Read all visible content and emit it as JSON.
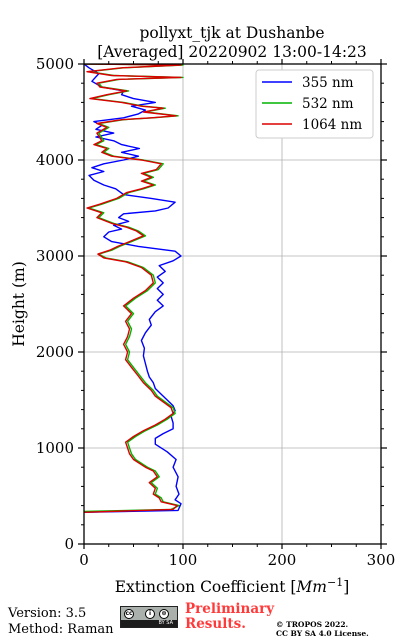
{
  "chart_data": {
    "type": "line",
    "title": "pollyxt_tjk at Dushanbe",
    "subtitle": "[Averaged] 20220902 13:00-14:23",
    "xlabel": "Extinction Coefficient [Mm⁻¹]",
    "ylabel": "Height (m)",
    "xlim": [
      0,
      300
    ],
    "ylim": [
      0,
      5000
    ],
    "xticks": [
      "0",
      "100",
      "200",
      "300"
    ],
    "yticks": [
      "0",
      "1000",
      "2000",
      "3000",
      "4000",
      "5000"
    ],
    "grid": true,
    "legend_position": "top-right",
    "series": [
      {
        "name": "355 nm",
        "color": "#0000ff",
        "points": [
          [
            0,
            330
          ],
          [
            95,
            350
          ],
          [
            98,
            420
          ],
          [
            92,
            460
          ],
          [
            96,
            520
          ],
          [
            93,
            600
          ],
          [
            95,
            700
          ],
          [
            90,
            800
          ],
          [
            93,
            880
          ],
          [
            84,
            960
          ],
          [
            72,
            1040
          ],
          [
            72,
            1100
          ],
          [
            80,
            1150
          ],
          [
            90,
            1200
          ],
          [
            90,
            1260
          ],
          [
            88,
            1330
          ],
          [
            92,
            1390
          ],
          [
            90,
            1440
          ],
          [
            84,
            1500
          ],
          [
            78,
            1560
          ],
          [
            72,
            1620
          ],
          [
            70,
            1680
          ],
          [
            66,
            1740
          ],
          [
            64,
            1800
          ],
          [
            62,
            1880
          ],
          [
            60,
            1960
          ],
          [
            61,
            2040
          ],
          [
            58,
            2120
          ],
          [
            62,
            2200
          ],
          [
            68,
            2280
          ],
          [
            66,
            2340
          ],
          [
            72,
            2420
          ],
          [
            80,
            2480
          ],
          [
            74,
            2540
          ],
          [
            80,
            2600
          ],
          [
            74,
            2660
          ],
          [
            80,
            2720
          ],
          [
            74,
            2780
          ],
          [
            82,
            2840
          ],
          [
            76,
            2900
          ],
          [
            90,
            2950
          ],
          [
            98,
            3000
          ],
          [
            92,
            3050
          ],
          [
            55,
            3100
          ],
          [
            28,
            3150
          ],
          [
            20,
            3200
          ],
          [
            25,
            3250
          ],
          [
            38,
            3280
          ],
          [
            30,
            3320
          ],
          [
            45,
            3360
          ],
          [
            35,
            3400
          ],
          [
            40,
            3440
          ],
          [
            72,
            3470
          ],
          [
            85,
            3500
          ],
          [
            92,
            3560
          ],
          [
            68,
            3600
          ],
          [
            40,
            3640
          ],
          [
            32,
            3700
          ],
          [
            20,
            3740
          ],
          [
            10,
            3790
          ],
          [
            5,
            3840
          ],
          [
            20,
            3880
          ],
          [
            8,
            3920
          ],
          [
            20,
            3960
          ],
          [
            40,
            4000
          ],
          [
            55,
            4040
          ],
          [
            38,
            4080
          ],
          [
            56,
            4120
          ],
          [
            38,
            4160
          ],
          [
            30,
            4200
          ],
          [
            12,
            4240
          ],
          [
            30,
            4280
          ],
          [
            12,
            4320
          ],
          [
            18,
            4360
          ],
          [
            10,
            4400
          ],
          [
            40,
            4440
          ],
          [
            55,
            4480
          ],
          [
            62,
            4520
          ],
          [
            48,
            4560
          ],
          [
            72,
            4600
          ],
          [
            50,
            4640
          ],
          [
            38,
            4680
          ],
          [
            40,
            4720
          ],
          [
            18,
            4760
          ],
          [
            8,
            4820
          ],
          [
            15,
            4900
          ],
          [
            5,
            4960
          ],
          [
            0,
            5000
          ]
        ]
      },
      {
        "name": "532 nm",
        "color": "#00b400",
        "points": [
          [
            0,
            340
          ],
          [
            88,
            360
          ],
          [
            96,
            400
          ],
          [
            80,
            440
          ],
          [
            78,
            480
          ],
          [
            72,
            520
          ],
          [
            74,
            580
          ],
          [
            68,
            640
          ],
          [
            76,
            700
          ],
          [
            72,
            760
          ],
          [
            64,
            800
          ],
          [
            52,
            880
          ],
          [
            48,
            940
          ],
          [
            46,
            1000
          ],
          [
            44,
            1060
          ],
          [
            52,
            1120
          ],
          [
            62,
            1180
          ],
          [
            74,
            1240
          ],
          [
            84,
            1300
          ],
          [
            92,
            1360
          ],
          [
            90,
            1420
          ],
          [
            82,
            1480
          ],
          [
            74,
            1540
          ],
          [
            70,
            1600
          ],
          [
            62,
            1680
          ],
          [
            56,
            1760
          ],
          [
            50,
            1840
          ],
          [
            44,
            1920
          ],
          [
            46,
            2000
          ],
          [
            42,
            2080
          ],
          [
            46,
            2160
          ],
          [
            48,
            2240
          ],
          [
            44,
            2320
          ],
          [
            50,
            2400
          ],
          [
            42,
            2480
          ],
          [
            52,
            2560
          ],
          [
            64,
            2640
          ],
          [
            72,
            2720
          ],
          [
            70,
            2800
          ],
          [
            60,
            2880
          ],
          [
            44,
            2940
          ],
          [
            22,
            2980
          ],
          [
            15,
            3020
          ],
          [
            28,
            3060
          ],
          [
            36,
            3100
          ],
          [
            48,
            3150
          ],
          [
            62,
            3210
          ],
          [
            55,
            3260
          ],
          [
            45,
            3300
          ],
          [
            30,
            3340
          ],
          [
            15,
            3400
          ],
          [
            20,
            3450
          ],
          [
            5,
            3500
          ],
          [
            18,
            3540
          ],
          [
            35,
            3600
          ],
          [
            45,
            3660
          ],
          [
            60,
            3700
          ],
          [
            72,
            3740
          ],
          [
            60,
            3780
          ],
          [
            70,
            3820
          ],
          [
            60,
            3860
          ],
          [
            75,
            3900
          ],
          [
            80,
            3960
          ],
          [
            60,
            4000
          ],
          [
            30,
            4040
          ],
          [
            20,
            4080
          ],
          [
            25,
            4120
          ],
          [
            12,
            4160
          ],
          [
            20,
            4200
          ],
          [
            15,
            4280
          ],
          [
            25,
            4340
          ],
          [
            15,
            4380
          ],
          [
            40,
            4420
          ],
          [
            70,
            4440
          ],
          [
            95,
            4460
          ],
          [
            62,
            4500
          ],
          [
            82,
            4540
          ],
          [
            60,
            4560
          ],
          [
            40,
            4600
          ],
          [
            8,
            4640
          ],
          [
            25,
            4680
          ],
          [
            45,
            4720
          ],
          [
            18,
            4760
          ],
          [
            15,
            4800
          ],
          [
            35,
            4840
          ],
          [
            100,
            4860
          ],
          [
            30,
            4880
          ],
          [
            5,
            4920
          ],
          [
            40,
            4960
          ],
          [
            100,
            4990
          ],
          [
            0,
            5000
          ]
        ]
      },
      {
        "name": "1064 nm",
        "color": "#dc0000",
        "points": [
          [
            0,
            330
          ],
          [
            90,
            360
          ],
          [
            94,
            400
          ],
          [
            78,
            440
          ],
          [
            76,
            480
          ],
          [
            70,
            520
          ],
          [
            72,
            580
          ],
          [
            66,
            640
          ],
          [
            74,
            700
          ],
          [
            70,
            760
          ],
          [
            62,
            800
          ],
          [
            50,
            880
          ],
          [
            46,
            940
          ],
          [
            44,
            1000
          ],
          [
            42,
            1060
          ],
          [
            50,
            1120
          ],
          [
            60,
            1180
          ],
          [
            72,
            1240
          ],
          [
            82,
            1300
          ],
          [
            90,
            1360
          ],
          [
            88,
            1420
          ],
          [
            80,
            1480
          ],
          [
            72,
            1540
          ],
          [
            68,
            1600
          ],
          [
            60,
            1680
          ],
          [
            54,
            1760
          ],
          [
            48,
            1840
          ],
          [
            42,
            1920
          ],
          [
            44,
            2000
          ],
          [
            40,
            2080
          ],
          [
            44,
            2160
          ],
          [
            46,
            2240
          ],
          [
            42,
            2320
          ],
          [
            48,
            2400
          ],
          [
            40,
            2480
          ],
          [
            50,
            2560
          ],
          [
            62,
            2640
          ],
          [
            70,
            2720
          ],
          [
            68,
            2800
          ],
          [
            58,
            2880
          ],
          [
            42,
            2940
          ],
          [
            20,
            2980
          ],
          [
            14,
            3020
          ],
          [
            26,
            3060
          ],
          [
            34,
            3100
          ],
          [
            46,
            3150
          ],
          [
            60,
            3210
          ],
          [
            53,
            3260
          ],
          [
            43,
            3300
          ],
          [
            28,
            3340
          ],
          [
            13,
            3400
          ],
          [
            18,
            3450
          ],
          [
            3,
            3500
          ],
          [
            16,
            3540
          ],
          [
            33,
            3600
          ],
          [
            43,
            3660
          ],
          [
            58,
            3700
          ],
          [
            70,
            3740
          ],
          [
            58,
            3780
          ],
          [
            68,
            3820
          ],
          [
            58,
            3860
          ],
          [
            73,
            3900
          ],
          [
            78,
            3960
          ],
          [
            58,
            4000
          ],
          [
            28,
            4040
          ],
          [
            18,
            4080
          ],
          [
            23,
            4120
          ],
          [
            10,
            4160
          ],
          [
            18,
            4200
          ],
          [
            13,
            4280
          ],
          [
            23,
            4340
          ],
          [
            13,
            4380
          ],
          [
            38,
            4420
          ],
          [
            68,
            4440
          ],
          [
            93,
            4460
          ],
          [
            60,
            4500
          ],
          [
            80,
            4540
          ],
          [
            58,
            4560
          ],
          [
            38,
            4600
          ],
          [
            6,
            4640
          ],
          [
            23,
            4680
          ],
          [
            43,
            4720
          ],
          [
            16,
            4760
          ],
          [
            13,
            4800
          ],
          [
            33,
            4840
          ],
          [
            98,
            4860
          ],
          [
            28,
            4880
          ],
          [
            3,
            4920
          ],
          [
            38,
            4960
          ],
          [
            98,
            4990
          ],
          [
            0,
            5000
          ]
        ]
      }
    ]
  },
  "footer": {
    "version": "Version: 3.5",
    "method": "Method: Raman",
    "cc_badge_text": "BY SA",
    "cc_symbols": [
      "cc",
      "i",
      "⊜"
    ],
    "preliminary_line1": "Preliminary",
    "preliminary_line2": "Results.",
    "copyright_line1": "© TROPOS 2022.",
    "copyright_line2": "CC BY SA 4.0 License."
  }
}
